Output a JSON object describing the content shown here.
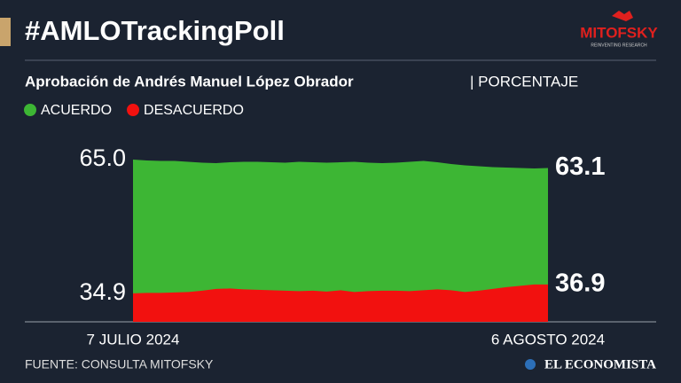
{
  "chart_data": {
    "type": "area",
    "title": "#AMLOTrackingPoll",
    "subtitle": "Aprobación de Andrés Manuel López Obrador",
    "y_label": "| PORCENTAJE",
    "logo": "MITOFSKY",
    "logo_tagline": "REINVENTING RESEARCH",
    "source": "FUENTE: CONSULTA MITOFSKY",
    "publisher": "EL ECONOMISTA",
    "categories": [
      "7 JULIO 2024",
      null,
      null,
      null,
      null,
      null,
      null,
      null,
      null,
      null,
      null,
      null,
      null,
      null,
      null,
      null,
      null,
      null,
      null,
      null,
      null,
      null,
      null,
      null,
      null,
      null,
      null,
      null,
      null,
      null,
      "6 AGOSTO 2024"
    ],
    "series": [
      {
        "name": "ACUERDO",
        "color": "#3db634",
        "values": [
          65.0,
          64.8,
          64.7,
          64.7,
          64.5,
          64.3,
          64.2,
          64.4,
          64.5,
          64.5,
          64.4,
          64.3,
          64.5,
          64.4,
          64.3,
          64.4,
          64.5,
          64.3,
          64.2,
          64.3,
          64.5,
          64.7,
          64.4,
          64.0,
          63.7,
          63.5,
          63.3,
          63.2,
          63.1,
          63.0,
          63.1
        ]
      },
      {
        "name": "DESACUERDO",
        "color": "#f2110f",
        "values": [
          34.9,
          35.0,
          35.0,
          35.1,
          35.2,
          35.5,
          35.9,
          36.0,
          35.8,
          35.7,
          35.6,
          35.5,
          35.4,
          35.5,
          35.3,
          35.6,
          35.2,
          35.4,
          35.5,
          35.5,
          35.4,
          35.6,
          35.8,
          35.6,
          35.2,
          35.5,
          35.9,
          36.3,
          36.6,
          36.9,
          36.9
        ]
      }
    ],
    "ylim": [
      28.5,
      67
    ],
    "yticks": [
      {
        "value": 65,
        "label": "65.0"
      },
      34.9
    ],
    "grid": false
  }
}
